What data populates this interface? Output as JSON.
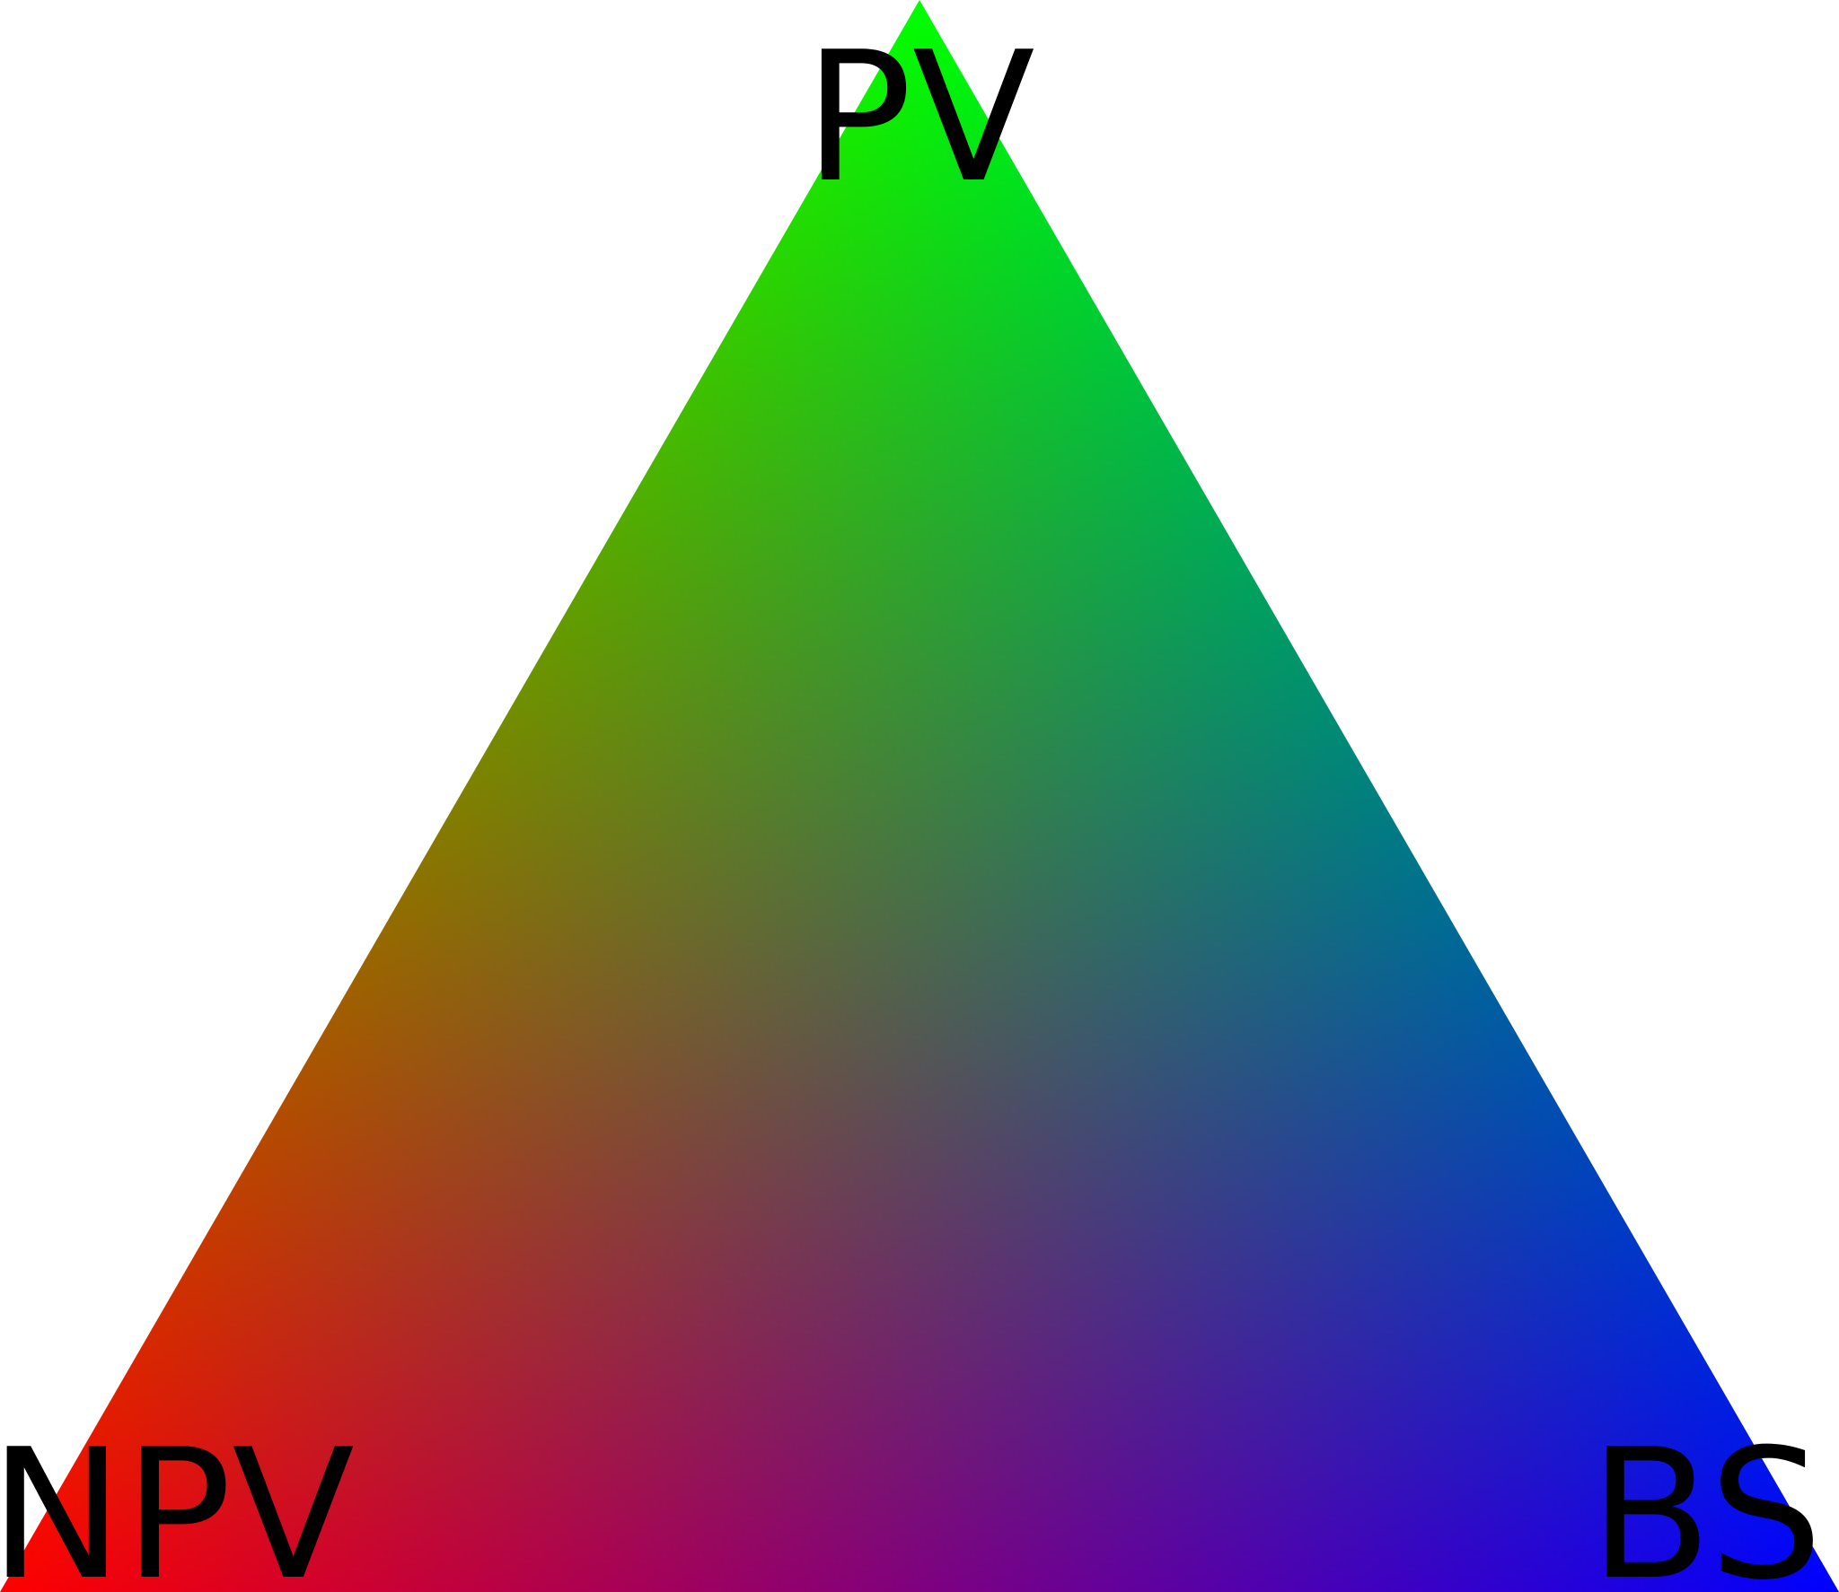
{
  "diagram": {
    "type": "ternary-color-triangle",
    "vertices": {
      "top": {
        "label": "PV",
        "color": "#00ff00"
      },
      "bottom_left": {
        "label": "NPV",
        "color": "#ff0000"
      },
      "bottom_right": {
        "label": "BS",
        "color": "#0000ff"
      }
    },
    "background_color": "#ffffff",
    "label_color": "#000000"
  }
}
